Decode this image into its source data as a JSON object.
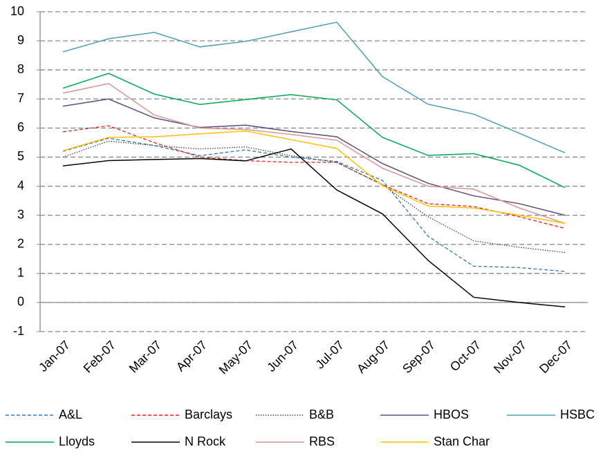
{
  "chart_data": {
    "type": "line",
    "categories": [
      "Jan-07",
      "Feb-07",
      "Mar-07",
      "Apr-07",
      "May-07",
      "Jun-07",
      "Jul-07",
      "Aug-07",
      "Sep-07",
      "Oct-07",
      "Nov-07",
      "Dec-07"
    ],
    "ylim": [
      -1,
      10
    ],
    "yticks": [
      -1,
      0,
      1,
      2,
      3,
      4,
      5,
      6,
      7,
      8,
      9,
      10
    ],
    "grid": true,
    "legend": "bottom",
    "series": [
      {
        "name": "A&L",
        "color": "#2e75b6",
        "dash": "dashed",
        "values": [
          5.2,
          5.65,
          5.4,
          5.05,
          5.25,
          5.0,
          4.85,
          4.2,
          2.28,
          1.25,
          1.2,
          1.07
        ]
      },
      {
        "name": "Barclays",
        "color": "#e0201b",
        "dash": "dashed",
        "values": [
          5.87,
          6.08,
          5.5,
          5.0,
          4.88,
          4.82,
          4.82,
          4.05,
          3.4,
          3.3,
          2.95,
          2.55
        ]
      },
      {
        "name": "B&B",
        "color": "#404040",
        "dash": "dotted",
        "values": [
          5.0,
          5.55,
          5.4,
          5.28,
          5.35,
          5.05,
          4.82,
          4.05,
          2.95,
          2.12,
          1.9,
          1.72
        ]
      },
      {
        "name": "HBOS",
        "color": "#604a7b",
        "dash": "solid",
        "values": [
          6.75,
          7.0,
          6.35,
          6.02,
          6.1,
          5.88,
          5.7,
          4.78,
          4.1,
          3.67,
          3.4,
          3.0
        ]
      },
      {
        "name": "HSBC",
        "color": "#4a9fb5",
        "dash": "solid",
        "values": [
          8.62,
          9.07,
          9.29,
          8.79,
          8.98,
          9.31,
          9.64,
          7.77,
          6.82,
          6.48,
          5.82,
          5.15
        ]
      },
      {
        "name": "Lloyds",
        "color": "#00a850",
        "dash": "solid",
        "values": [
          7.37,
          7.88,
          7.17,
          6.81,
          6.98,
          7.15,
          6.97,
          5.68,
          5.06,
          5.12,
          4.72,
          3.95
        ]
      },
      {
        "name": "N Rock",
        "color": "#000000",
        "dash": "solid",
        "values": [
          4.7,
          4.88,
          4.92,
          4.95,
          4.87,
          5.28,
          3.87,
          3.05,
          1.45,
          0.18,
          0.0,
          -0.15
        ]
      },
      {
        "name": "RBS",
        "color": "#d99694",
        "dash": "solid",
        "values": [
          7.2,
          7.53,
          6.45,
          6.0,
          5.95,
          5.78,
          5.58,
          4.62,
          4.0,
          3.9,
          3.25,
          2.72
        ]
      },
      {
        "name": "Stan Char",
        "color": "#ffc000",
        "dash": "solid",
        "values": [
          5.22,
          5.68,
          5.7,
          5.8,
          5.9,
          5.6,
          5.3,
          4.02,
          3.32,
          3.25,
          3.0,
          2.72
        ]
      }
    ]
  }
}
